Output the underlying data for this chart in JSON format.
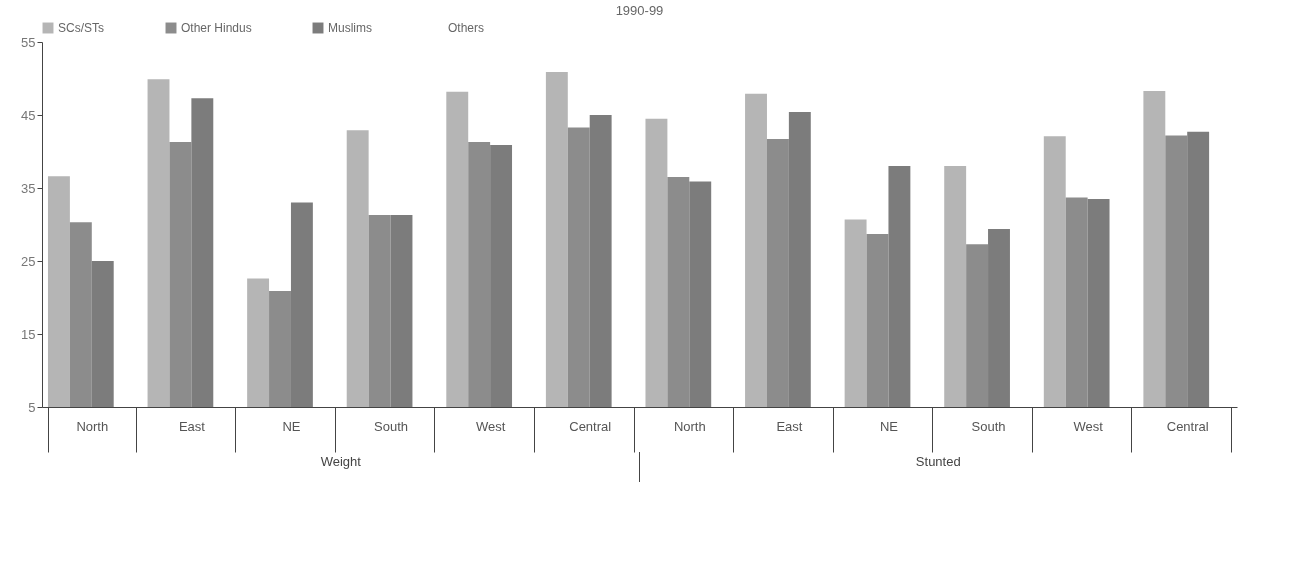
{
  "chart_data": {
    "type": "bar",
    "title": "1990-99",
    "categories": [
      "North",
      "East",
      "NE",
      "South",
      "West",
      "Central",
      "North",
      "East",
      "NE",
      "South",
      "West",
      "Central"
    ],
    "series": [
      {
        "name": "SCs/STs",
        "color": "#b5b5b5",
        "values": [
          36.6,
          49.9,
          22.6,
          42.9,
          48.2,
          50.9,
          44.5,
          47.9,
          30.7,
          38,
          42.1,
          48.3
        ]
      },
      {
        "name": "Other Hindus",
        "color": "#8c8c8c",
        "values": [
          30.3,
          41.3,
          20.9,
          31.3,
          41.3,
          43.3,
          36.5,
          41.7,
          28.7,
          27.3,
          33.7,
          42.2
        ]
      },
      {
        "name": "Muslims",
        "color": "#7c7c7c",
        "values": [
          25,
          47.3,
          33,
          31.3,
          40.9,
          45,
          35.9,
          45.4,
          38,
          29.4,
          33.5,
          42.7
        ]
      },
      {
        "name": "Others",
        "values": [
          null,
          null,
          null,
          null,
          null,
          null,
          null,
          null,
          null,
          null,
          null,
          null
        ]
      }
    ],
    "annotations": [
      "Weight",
      "Stunted"
    ],
    "ylim": [
      5,
      55
    ],
    "yticks": [
      5,
      15,
      25,
      35,
      45,
      55
    ],
    "grid": false,
    "legend": "top"
  }
}
